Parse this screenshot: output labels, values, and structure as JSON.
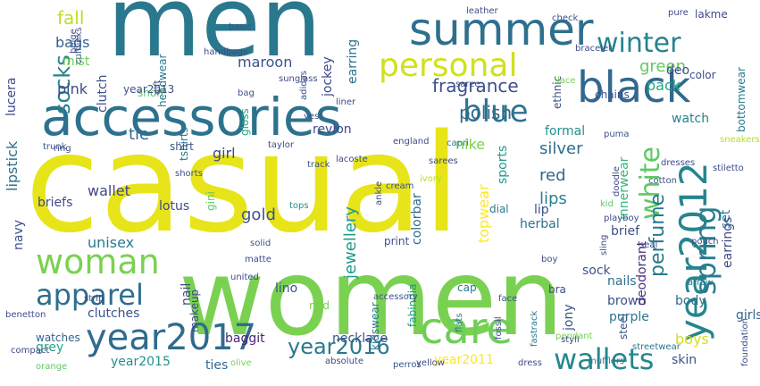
{
  "words": [
    {
      "text": "casual",
      "color": "#e7e419"
    },
    {
      "text": "men",
      "color": "#2a788e"
    },
    {
      "text": "women",
      "color": "#7ad151"
    },
    {
      "text": "accessories",
      "color": "#2c728e"
    },
    {
      "text": "summer",
      "color": "#2d708e"
    },
    {
      "text": "black",
      "color": "#31688e"
    },
    {
      "text": "personal",
      "color": "#d0e11c"
    },
    {
      "text": "year2012",
      "color": "#25858e"
    },
    {
      "text": "care",
      "color": "#6ece58"
    },
    {
      "text": "year2017",
      "color": "#2f6c8e"
    },
    {
      "text": "woman",
      "color": "#7ad151"
    },
    {
      "text": "spring",
      "color": "#287c8e"
    },
    {
      "text": "blue",
      "color": "#2c738e"
    },
    {
      "text": "apparel",
      "color": "#2e6e8e"
    },
    {
      "text": "wallets",
      "color": "#24878e"
    },
    {
      "text": "white",
      "color": "#5ec962"
    },
    {
      "text": "year2016",
      "color": "#2a788e"
    },
    {
      "text": "winter",
      "color": "#25838e"
    },
    {
      "text": "fragrance",
      "color": "#3b528b"
    },
    {
      "text": "socks",
      "color": "#26828e"
    },
    {
      "text": "perfume",
      "color": "#29798e"
    },
    {
      "text": "polish",
      "color": "#30698e"
    },
    {
      "text": "jewellery",
      "color": "#1f9a8a"
    },
    {
      "text": "fall",
      "color": "#bddf26"
    },
    {
      "text": "bags",
      "color": "#33638d"
    },
    {
      "text": "pink",
      "color": "#3e4a89"
    },
    {
      "text": "maroon",
      "color": "#3b528b"
    },
    {
      "text": "earring",
      "color": "#2c728e"
    },
    {
      "text": "green",
      "color": "#5ec962"
    },
    {
      "text": "pack",
      "color": "#22a884"
    },
    {
      "text": "lipstick",
      "color": "#2d708e"
    },
    {
      "text": "tie",
      "color": "#31688e"
    },
    {
      "text": "girl",
      "color": "#3f4788"
    },
    {
      "text": "silver",
      "color": "#2e6e8e"
    },
    {
      "text": "red",
      "color": "#31688e"
    },
    {
      "text": "lips",
      "color": "#26828e"
    },
    {
      "text": "gold",
      "color": "#3b528b"
    },
    {
      "text": "unisex",
      "color": "#29798e"
    },
    {
      "text": "wallet",
      "color": "#404688"
    },
    {
      "text": "lotus",
      "color": "#3e4989"
    },
    {
      "text": "year2015",
      "color": "#21918c"
    },
    {
      "text": "year2011",
      "color": "#fde725"
    },
    {
      "text": "boys",
      "color": "#d0e11c"
    },
    {
      "text": "grey",
      "color": "#22a884"
    },
    {
      "text": "skin",
      "color": "#3b528b"
    },
    {
      "text": "ties",
      "color": "#31688e"
    },
    {
      "text": "watches",
      "color": "#33638d"
    },
    {
      "text": "clutches",
      "color": "#3b528b"
    },
    {
      "text": "baggit",
      "color": "#482777"
    },
    {
      "text": "necklace",
      "color": "#3b528b"
    },
    {
      "text": "watch",
      "color": "#26828e"
    },
    {
      "text": "body",
      "color": "#2e6e8e"
    },
    {
      "text": "brown",
      "color": "#3b528b"
    },
    {
      "text": "purple",
      "color": "#2a788e"
    },
    {
      "text": "nails",
      "color": "#2e6e8e"
    },
    {
      "text": "sock",
      "color": "#3b528b"
    },
    {
      "text": "topwear",
      "color": "#fde725"
    },
    {
      "text": "colorbar",
      "color": "#30698e"
    },
    {
      "text": "herbal",
      "color": "#2c728e"
    },
    {
      "text": "lip",
      "color": "#3b528b"
    },
    {
      "text": "brief",
      "color": "#3b528b"
    },
    {
      "text": "briefs",
      "color": "#3e4a89"
    },
    {
      "text": "nike",
      "color": "#7ad151"
    },
    {
      "text": "formal",
      "color": "#21918c"
    },
    {
      "text": "mist",
      "color": "#6ece58"
    },
    {
      "text": "deo",
      "color": "#3e4a89"
    },
    {
      "text": "color",
      "color": "#3e4a89"
    },
    {
      "text": "innerwear",
      "color": "#35b779"
    },
    {
      "text": "bottomwear",
      "color": "#2a788e"
    },
    {
      "text": "deodorant",
      "color": "#472d7b"
    },
    {
      "text": "lino",
      "color": "#3b528b"
    },
    {
      "text": "nail",
      "color": "#3e4a89"
    },
    {
      "text": "makeup",
      "color": "#3e4a89"
    },
    {
      "text": "jockey",
      "color": "#3e4989"
    },
    {
      "text": "clutch",
      "color": "#3b528b"
    },
    {
      "text": "jony",
      "color": "#3b528b"
    },
    {
      "text": "earrings",
      "color": "#3e4a89"
    },
    {
      "text": "set",
      "color": "#2a788e"
    },
    {
      "text": "girls",
      "color": "#31688e"
    },
    {
      "text": "lucera",
      "color": "#3e4a89"
    },
    {
      "text": "navy",
      "color": "#3b528b"
    },
    {
      "text": "gini",
      "color": "#5ec962"
    },
    {
      "text": "gloss",
      "color": "#22a884"
    },
    {
      "text": "sports",
      "color": "#1f9a8a"
    },
    {
      "text": "lakme",
      "color": "#3e4a89"
    },
    {
      "text": "print",
      "color": "#3b528b"
    },
    {
      "text": "reid",
      "color": "#7ad151"
    },
    {
      "text": "kidswear",
      "color": "#2a788e"
    },
    {
      "text": "fabindia",
      "color": "#1f9a8a"
    },
    {
      "text": "steel",
      "color": "#3b528b"
    },
    {
      "text": "tshirts",
      "color": "#2a788e"
    },
    {
      "text": "shirt",
      "color": "#3b528b"
    },
    {
      "text": "headwear",
      "color": "#2a788e"
    },
    {
      "text": "short",
      "color": "#5ec962"
    },
    {
      "text": "year2013",
      "color": "#3b528b"
    },
    {
      "text": "bag",
      "color": "#3b528b"
    },
    {
      "text": "revlon",
      "color": "#3e4a89"
    },
    {
      "text": "taylor",
      "color": "#3e4a89"
    },
    {
      "text": "trunk",
      "color": "#3b528b"
    },
    {
      "text": "tops",
      "color": "#21918c"
    },
    {
      "text": "bra",
      "color": "#3e4a89"
    },
    {
      "text": "cap",
      "color": "#2a788e"
    },
    {
      "text": "dial",
      "color": "#2a788e"
    },
    {
      "text": "ethnic",
      "color": "#3b528b"
    },
    {
      "text": "chains",
      "color": "#3b528b"
    },
    {
      "text": "boy",
      "color": "#3e4a89"
    },
    {
      "text": "solid",
      "color": "#3b528b"
    },
    {
      "text": "matte",
      "color": "#3e4a89"
    },
    {
      "text": "united",
      "color": "#3e4a89"
    },
    {
      "text": "benetton",
      "color": "#3e4a89"
    },
    {
      "text": "orange",
      "color": "#5ec962"
    },
    {
      "text": "olive",
      "color": "#7ad151"
    },
    {
      "text": "perros",
      "color": "#3b528b"
    },
    {
      "text": "yellow",
      "color": "#3e4a89"
    },
    {
      "text": "pendant",
      "color": "#7ad151"
    },
    {
      "text": "absolute",
      "color": "#3e4a89"
    },
    {
      "text": "foundation",
      "color": "#3b528b"
    },
    {
      "text": "mufflers",
      "color": "#2a788e"
    },
    {
      "text": "streetwear",
      "color": "#2a788e"
    },
    {
      "text": "dress",
      "color": "#3e4a89"
    },
    {
      "text": "capri",
      "color": "#2a788e"
    },
    {
      "text": "doodle",
      "color": "#3e4a89"
    },
    {
      "text": "handbags",
      "color": "#3e4a89"
    },
    {
      "text": "cufflinks",
      "color": "#3b528b"
    },
    {
      "text": "gift",
      "color": "#3b528b"
    },
    {
      "text": "pure",
      "color": "#3e4a89"
    },
    {
      "text": "leather",
      "color": "#3e4a89"
    },
    {
      "text": "lace",
      "color": "#7ad151"
    },
    {
      "text": "check",
      "color": "#3b528b"
    },
    {
      "text": "arrow",
      "color": "#2a788e"
    },
    {
      "text": "stiletto",
      "color": "#3e4a89"
    },
    {
      "text": "cream",
      "color": "#3b528b"
    },
    {
      "text": "ring",
      "color": "#3e4a89"
    },
    {
      "text": "fastrack",
      "color": "#2a788e"
    },
    {
      "text": "flats",
      "color": "#2a788e"
    },
    {
      "text": "cotton",
      "color": "#3e4a89"
    },
    {
      "text": "beige",
      "color": "#3e4a89"
    },
    {
      "text": "shorts",
      "color": "#3b528b"
    },
    {
      "text": "england",
      "color": "#3e4a89"
    },
    {
      "text": "face",
      "color": "#3b528b"
    },
    {
      "text": "sarees",
      "color": "#3e4a89"
    },
    {
      "text": "fossil",
      "color": "#3e4a89"
    },
    {
      "text": "kid",
      "color": "#5ec962"
    },
    {
      "text": "puma",
      "color": "#3b528b"
    },
    {
      "text": "saree",
      "color": "#3e4a89"
    },
    {
      "text": "strip",
      "color": "#3e4a89"
    },
    {
      "text": "track",
      "color": "#3b528b"
    },
    {
      "text": "dresses",
      "color": "#3e4a89"
    },
    {
      "text": "accessory",
      "color": "#3b528b"
    },
    {
      "text": "adidas",
      "color": "#3e4a89"
    },
    {
      "text": "styli",
      "color": "#3e4a89"
    },
    {
      "text": "ivory",
      "color": "#b5de2b"
    },
    {
      "text": "playboy",
      "color": "#3e4a89"
    },
    {
      "text": "compact",
      "color": "#3e4a89"
    },
    {
      "text": "sneakers",
      "color": "#b5de2b"
    },
    {
      "text": "sling",
      "color": "#3e4a89"
    },
    {
      "text": "vest",
      "color": "#3b528b"
    },
    {
      "text": "sunglass",
      "color": "#3e4a89"
    },
    {
      "text": "basic",
      "color": "#3e4a89"
    },
    {
      "text": "lacoste",
      "color": "#3e4a89"
    },
    {
      "text": "liner",
      "color": "#3e4a89"
    },
    {
      "text": "pouch",
      "color": "#3e4a89"
    },
    {
      "text": "bracelet",
      "color": "#3e4a89"
    },
    {
      "text": "ankle",
      "color": "#3e4a89"
    },
    {
      "text": "seal",
      "color": "#3e4a89"
    }
  ]
}
